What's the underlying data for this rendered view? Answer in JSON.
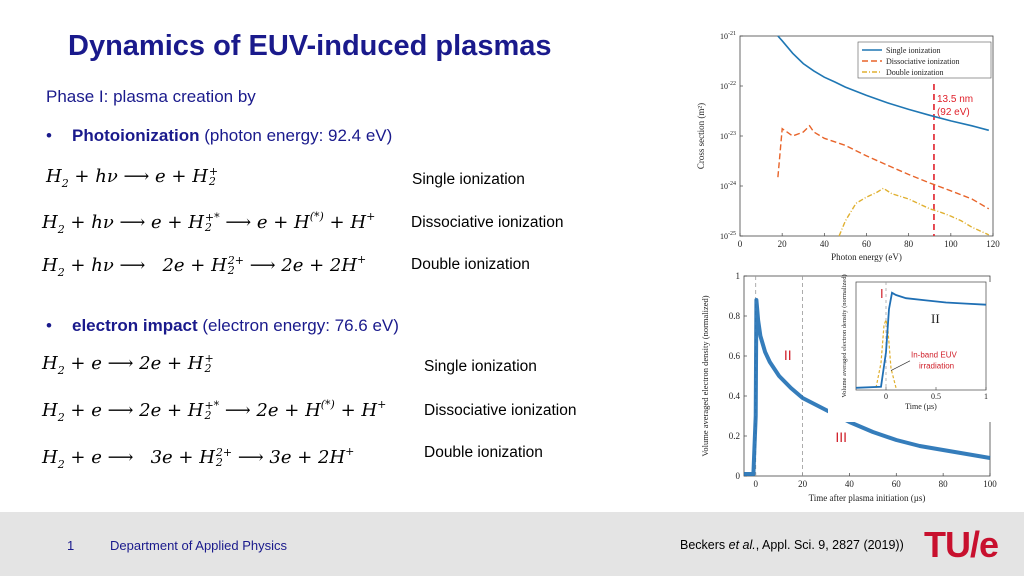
{
  "slide": {
    "title": "Dynamics of EUV-induced plasmas",
    "subtitle": "Phase I: plasma creation by",
    "bullet1": {
      "bold": "Photoionization",
      "rest": " (photon energy: 92.4 eV)"
    },
    "bullet2": {
      "bold": "electron impact",
      "rest": " (electron energy: 76.6 eV)"
    },
    "labels": {
      "single": "Single ionization",
      "dissociative": "Dissociative ionization",
      "double": "Double ionization"
    },
    "footer": {
      "page_number": "1",
      "department": "Department of Applied Physics",
      "citation_author": "Beckers",
      "citation_etal": " et al.",
      "citation_rest": ", Appl. Sci. 9, 2827 (2019))",
      "logo_text": "TU/e"
    },
    "colors": {
      "title": "#1a1a8c",
      "logo": "#c8102e",
      "footer_bg": "#e4e4e4"
    }
  },
  "chart_data": [
    {
      "type": "line",
      "xlabel": "Photon energy (eV)",
      "ylabel": "Cross section (m²)",
      "yscale": "log",
      "xlim": [
        0,
        120
      ],
      "ylim": [
        1e-25,
        1e-21
      ],
      "xticks": [
        "0",
        "20",
        "40",
        "60",
        "80",
        "100",
        "120"
      ],
      "yticks": [
        "10-21",
        "10-22",
        "10-23",
        "10-24",
        "10-25"
      ],
      "legend_position": "top-right",
      "annotation": {
        "line1": "13.5 nm",
        "line2": "(92 eV)",
        "x": 92
      },
      "series": [
        {
          "name": "Single ionization",
          "color": "#1f77b4",
          "style": "solid",
          "x": [
            18,
            20,
            25,
            30,
            35,
            40,
            45,
            50,
            60,
            70,
            80,
            90,
            100,
            110,
            118
          ],
          "y": [
            1e-21,
            8e-22,
            4.5e-22,
            2.8e-22,
            2e-22,
            1.5e-22,
            1.2e-22,
            9.5e-23,
            6.5e-23,
            4.6e-23,
            3.4e-23,
            2.6e-23,
            2e-23,
            1.6e-23,
            1.3e-23
          ]
        },
        {
          "name": "Dissociative ionization",
          "color": "#e8642a",
          "style": "dashed",
          "x": [
            18,
            20,
            25,
            30,
            33,
            35,
            40,
            50,
            60,
            70,
            80,
            90,
            100,
            110,
            118
          ],
          "y": [
            1.5e-24,
            1.4e-23,
            1e-23,
            1.2e-23,
            1.6e-23,
            1.2e-23,
            9e-24,
            6.5e-24,
            4e-24,
            2.6e-24,
            1.7e-24,
            1.15e-24,
            8e-25,
            5.5e-25,
            3.5e-25
          ]
        },
        {
          "name": "Double ionization",
          "color": "#e0b030",
          "style": "dashdot",
          "x": [
            47,
            50,
            55,
            60,
            65,
            68,
            72,
            80,
            90,
            95,
            100,
            105,
            110,
            115,
            118
          ],
          "y": [
            1e-25,
            2e-25,
            4.5e-25,
            6e-25,
            7.5e-25,
            9e-25,
            7e-25,
            5.5e-25,
            3.5e-25,
            3e-25,
            2.5e-25,
            2e-25,
            1.5e-25,
            1.2e-25,
            1.05e-25
          ]
        }
      ]
    },
    {
      "type": "line",
      "xlabel": "Time after plasma initiation (µs)",
      "ylabel": "Volume averaged electron density (normalized)",
      "xlim": [
        -5,
        100
      ],
      "ylim": [
        0,
        1
      ],
      "xticks": [
        "0",
        "20",
        "40",
        "60",
        "80",
        "100"
      ],
      "yticks": [
        "0",
        "0.2",
        "0.4",
        "0.6",
        "0.8",
        "1"
      ],
      "annotations": {
        "phase2": "II",
        "phase3": "III"
      },
      "series": [
        {
          "name": "",
          "color": "#1f6fb4",
          "x": [
            -5,
            -1,
            0,
            0.3,
            0.6,
            1,
            2,
            4,
            6,
            10,
            15,
            20,
            30,
            40,
            50,
            60,
            70,
            80,
            90,
            100
          ],
          "y": [
            0.01,
            0.01,
            0.3,
            0.88,
            0.84,
            0.78,
            0.7,
            0.62,
            0.57,
            0.5,
            0.44,
            0.39,
            0.33,
            0.27,
            0.22,
            0.18,
            0.15,
            0.13,
            0.11,
            0.09
          ]
        }
      ],
      "inset": {
        "xlabel": "Time (µs)",
        "ylabel": "Volume averaged electron density (normalized)",
        "xticks": [
          "0",
          "0.5",
          "1"
        ],
        "phase1": "I",
        "phase2": "II",
        "irradiation_label_line1": "In-band EUV",
        "irradiation_label_line2": "irradiation",
        "xlim": [
          -0.3,
          1
        ],
        "ylim": [
          0,
          1
        ],
        "density": {
          "x": [
            -0.3,
            -0.05,
            0,
            0.03,
            0.06,
            0.1,
            0.2,
            0.4,
            0.6,
            0.8,
            1
          ],
          "y": [
            0.02,
            0.03,
            0.35,
            0.75,
            0.9,
            0.88,
            0.85,
            0.83,
            0.81,
            0.8,
            0.79
          ]
        },
        "euv": {
          "x": [
            -0.1,
            -0.05,
            -0.02,
            0,
            0.02,
            0.05,
            0.1
          ],
          "y": [
            0.02,
            0.25,
            0.6,
            0.65,
            0.55,
            0.2,
            0.02
          ]
        }
      }
    }
  ]
}
